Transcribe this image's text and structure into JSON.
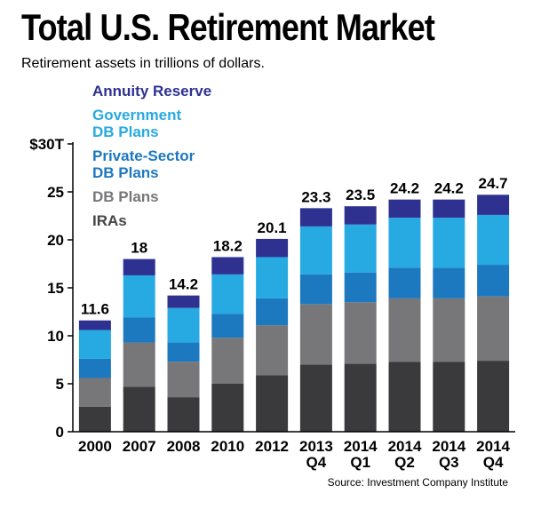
{
  "chart_data": {
    "type": "bar",
    "stacked": true,
    "title": "Total U.S. Retirement Market",
    "subtitle": "Retirement assets in trillions of dollars.",
    "source": "Source: Investment Company Institute",
    "ylim": [
      0,
      30
    ],
    "yticks": [
      {
        "value": 0,
        "label": "0"
      },
      {
        "value": 5,
        "label": "5"
      },
      {
        "value": 10,
        "label": "10"
      },
      {
        "value": 15,
        "label": "15"
      },
      {
        "value": 20,
        "label": "20"
      },
      {
        "value": 25,
        "label": "25"
      },
      {
        "value": 30,
        "label": "$30T"
      }
    ],
    "categories": [
      [
        "2000"
      ],
      [
        "2007"
      ],
      [
        "2008"
      ],
      [
        "2010"
      ],
      [
        "2012"
      ],
      [
        "2013",
        "Q4"
      ],
      [
        "2014",
        "Q1"
      ],
      [
        "2014",
        "Q2"
      ],
      [
        "2014",
        "Q3"
      ],
      [
        "2014",
        "Q4"
      ]
    ],
    "totals": [
      "11.6",
      "18",
      "14.2",
      "18.2",
      "20.1",
      "23.3",
      "23.5",
      "24.2",
      "24.2",
      "24.7"
    ],
    "series": [
      {
        "name": "IRAs",
        "color": "#3a3a3c",
        "legend_color": "#444446",
        "values": [
          2.6,
          4.7,
          3.6,
          5.0,
          5.9,
          7.0,
          7.1,
          7.3,
          7.3,
          7.4
        ]
      },
      {
        "name": "DB Plans",
        "color": "#77777a",
        "legend_color": "#77777a",
        "values": [
          3.0,
          4.6,
          3.7,
          4.8,
          5.2,
          6.3,
          6.4,
          6.6,
          6.6,
          6.7
        ]
      },
      {
        "name": [
          "Private-Sector",
          "DB Plans"
        ],
        "color": "#1c78bf",
        "legend_color": "#1c78bf",
        "values": [
          2.0,
          2.6,
          2.0,
          2.5,
          2.8,
          3.1,
          3.1,
          3.2,
          3.2,
          3.3
        ]
      },
      {
        "name": [
          "Government",
          "DB Plans"
        ],
        "color": "#27aae1",
        "legend_color": "#27aae1",
        "values": [
          3.0,
          4.4,
          3.6,
          4.1,
          4.3,
          5.0,
          5.0,
          5.2,
          5.2,
          5.2
        ]
      },
      {
        "name": "Annuity Reserve",
        "color": "#2e3190",
        "legend_color": "#2e3190",
        "values": [
          1.0,
          1.7,
          1.3,
          1.8,
          1.9,
          1.9,
          1.9,
          1.9,
          1.9,
          2.1
        ]
      }
    ],
    "grid": false,
    "legend_position": "top-left"
  }
}
